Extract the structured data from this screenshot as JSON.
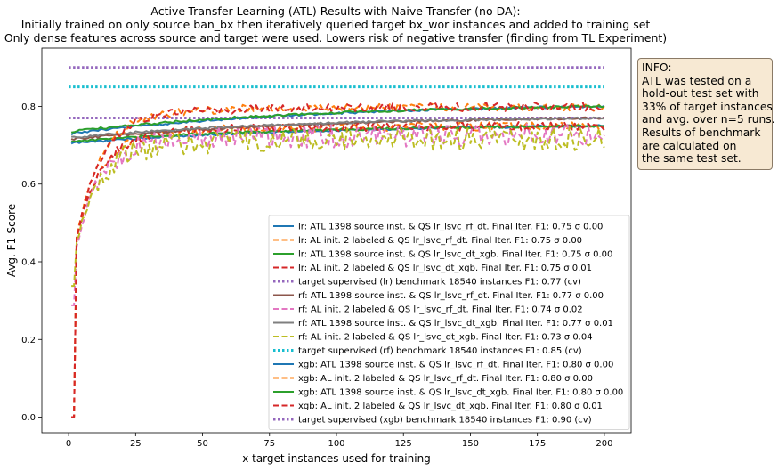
{
  "chart_data": {
    "type": "line",
    "title": [
      "Active-Transfer Learning (ATL) Results with Naive Transfer (no DA):",
      "Initially trained on only source ban_bx then iteratively queried target bx_wor instances and added to training set",
      "Only dense features across source and target were used. Lowers risk of negative transfer (finding from TL Experiment)"
    ],
    "xlabel": "x target instances used for training",
    "ylabel": "Avg. F1-Score",
    "xlim": [
      -10,
      210
    ],
    "ylim": [
      -0.04,
      0.95
    ],
    "x_ticks": [
      0,
      25,
      50,
      75,
      100,
      125,
      150,
      175,
      200
    ],
    "y_ticks": [
      0.0,
      0.2,
      0.4,
      0.6,
      0.8
    ],
    "grid": false,
    "legend_position": "lower-right",
    "series": [
      {
        "name": "lr: ATL 1398 source inst. & QS lr_lsvc_rf_dt. Final Iter. F1: 0.75 σ 0.00",
        "color": "#1f77b4",
        "style": "solid",
        "kind": "atl",
        "start": 0.705,
        "end": 0.75
      },
      {
        "name": "lr: AL init. 2 labeled & QS lr_lsvc_rf_dt. Final Iter. F1: 0.75 σ 0.00",
        "color": "#ff7f0e",
        "style": "dashed",
        "kind": "al",
        "start": 0.0,
        "end": 0.75
      },
      {
        "name": "lr: ATL 1398 source inst. & QS lr_lsvc_dt_xgb. Final Iter. F1: 0.75 σ 0.00",
        "color": "#2ca02c",
        "style": "solid",
        "kind": "atl",
        "start": 0.71,
        "end": 0.75
      },
      {
        "name": "lr: AL init. 2 labeled & QS lr_lsvc_dt_xgb. Final Iter. F1: 0.75 σ 0.01",
        "color": "#d62728",
        "style": "dashed",
        "kind": "al",
        "start": 0.0,
        "end": 0.75
      },
      {
        "name": "target supervised (lr) benchmark 18540 instances F1: 0.77 (cv)",
        "color": "#9467bd",
        "style": "dotted",
        "kind": "benchmark",
        "start": 0.77,
        "end": 0.77
      },
      {
        "name": "rf: ATL 1398 source inst. & QS lr_lsvc_rf_dt. Final Iter. F1: 0.77 σ 0.00",
        "color": "#8c564b",
        "style": "solid",
        "kind": "atl",
        "start": 0.715,
        "end": 0.77
      },
      {
        "name": "rf: AL init. 2 labeled & QS lr_lsvc_rf_dt. Final Iter. F1: 0.74 σ 0.02",
        "color": "#e377c2",
        "style": "dashed",
        "kind": "al_noisy",
        "start": 0.3,
        "end": 0.74
      },
      {
        "name": "rf: ATL 1398 source inst. & QS lr_lsvc_dt_xgb. Final Iter. F1: 0.77 σ 0.01",
        "color": "#7f7f7f",
        "style": "solid",
        "kind": "atl",
        "start": 0.72,
        "end": 0.77
      },
      {
        "name": "rf: AL init. 2 labeled & QS lr_lsvc_dt_xgb. Final Iter. F1: 0.73 σ 0.04",
        "color": "#bcbd22",
        "style": "dashed",
        "kind": "al_noisy",
        "start": 0.35,
        "end": 0.73
      },
      {
        "name": "target supervised (rf) benchmark 18540 instances F1: 0.85 (cv)",
        "color": "#17becf",
        "style": "dotted",
        "kind": "benchmark",
        "start": 0.85,
        "end": 0.85
      },
      {
        "name": "xgb: ATL 1398 source inst. & QS lr_lsvc_rf_dt. Final Iter. F1: 0.80 σ 0.00",
        "color": "#1f77b4",
        "style": "solid",
        "kind": "atl",
        "start": 0.73,
        "end": 0.8
      },
      {
        "name": "xgb: AL init. 2 labeled & QS lr_lsvc_rf_dt. Final Iter. F1: 0.80 σ 0.00",
        "color": "#ff7f0e",
        "style": "dashed",
        "kind": "al",
        "start": 0.0,
        "end": 0.8
      },
      {
        "name": "xgb: ATL 1398 source inst. & QS lr_lsvc_dt_xgb. Final Iter. F1: 0.80 σ 0.00",
        "color": "#2ca02c",
        "style": "solid",
        "kind": "atl",
        "start": 0.735,
        "end": 0.8
      },
      {
        "name": "xgb: AL init. 2 labeled & QS lr_lsvc_dt_xgb. Final Iter. F1: 0.80 σ 0.01",
        "color": "#d62728",
        "style": "dashed",
        "kind": "al",
        "start": 0.0,
        "end": 0.8
      },
      {
        "name": "target supervised (xgb) benchmark 18540 instances F1: 0.90 (cv)",
        "color": "#9467bd",
        "style": "dotted",
        "kind": "benchmark",
        "start": 0.9,
        "end": 0.9
      }
    ]
  },
  "info_box": {
    "lines": [
      "INFO:",
      "ATL was tested on a",
      "hold-out test set with",
      "33% of target instances",
      "and avg. over n=5 runs.",
      "Results of benchmark",
      "are calculated on",
      "the same test set."
    ]
  }
}
